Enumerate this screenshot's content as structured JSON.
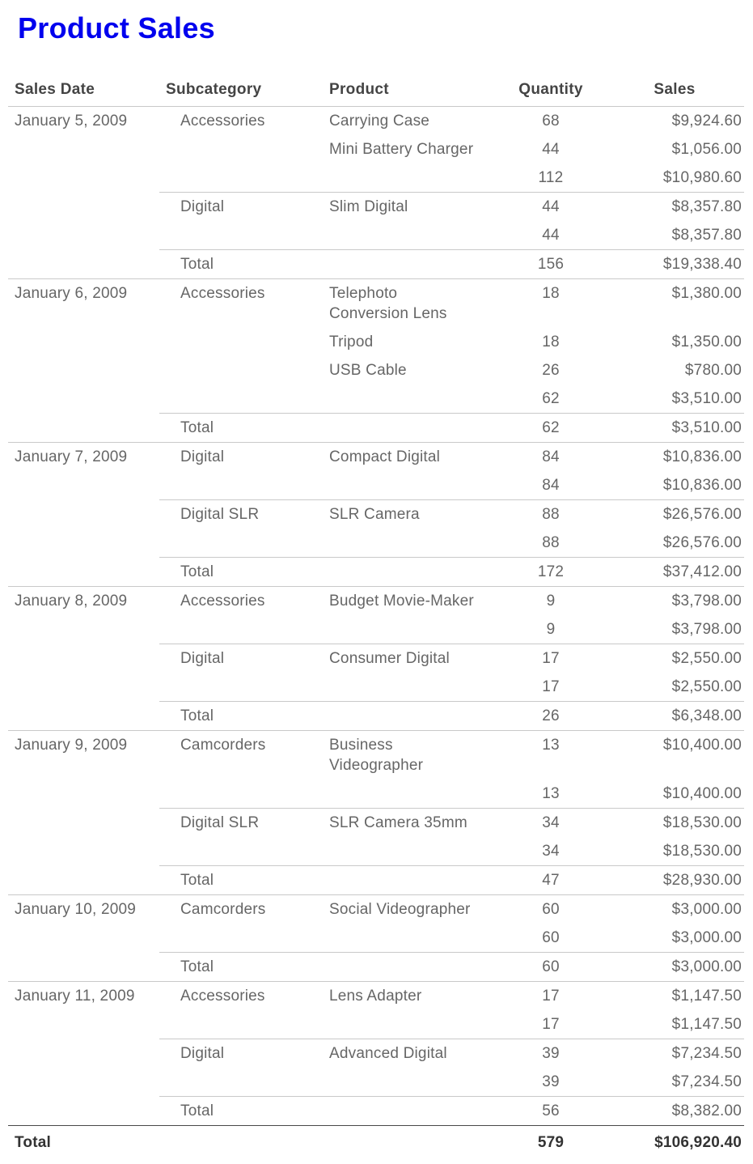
{
  "title": "Product Sales",
  "colors": {
    "title": "#0000ee",
    "header_text": "#444444",
    "body_text": "#666666",
    "separator": "#c9c9c9",
    "grand_total_border": "#484848",
    "grand_total_text": "#333333"
  },
  "chart_data": {
    "type": "table",
    "title": "Product Sales",
    "columns": [
      "Sales Date",
      "Subcategory",
      "Product",
      "Quantity",
      "Sales"
    ],
    "rows": [
      {
        "date": "January 5, 2009",
        "subcategory": "Accessories",
        "product": "Carrying Case",
        "quantity": 68,
        "sales": "$9,924.60",
        "sep": "none"
      },
      {
        "date": "",
        "subcategory": "",
        "product": "Mini Battery Charger",
        "quantity": 44,
        "sales": "$1,056.00",
        "sep": "none"
      },
      {
        "date": "",
        "subcategory": "",
        "product": "",
        "quantity": 112,
        "sales": "$10,980.60",
        "sep": "none"
      },
      {
        "date": "",
        "subcategory": "Digital",
        "product": "Slim Digital",
        "quantity": 44,
        "sales": "$8,357.80",
        "sep": "sub"
      },
      {
        "date": "",
        "subcategory": "",
        "product": "",
        "quantity": 44,
        "sales": "$8,357.80",
        "sep": "none"
      },
      {
        "date": "",
        "subcategory": "Total",
        "product": "",
        "quantity": 156,
        "sales": "$19,338.40",
        "sep": "sub"
      },
      {
        "date": "January 6, 2009",
        "subcategory": "Accessories",
        "product": "Telephoto\nConversion Lens",
        "quantity": 18,
        "sales": "$1,380.00",
        "sep": "date"
      },
      {
        "date": "",
        "subcategory": "",
        "product": "Tripod",
        "quantity": 18,
        "sales": "$1,350.00",
        "sep": "none"
      },
      {
        "date": "",
        "subcategory": "",
        "product": "USB Cable",
        "quantity": 26,
        "sales": "$780.00",
        "sep": "none"
      },
      {
        "date": "",
        "subcategory": "",
        "product": "",
        "quantity": 62,
        "sales": "$3,510.00",
        "sep": "none"
      },
      {
        "date": "",
        "subcategory": "Total",
        "product": "",
        "quantity": 62,
        "sales": "$3,510.00",
        "sep": "sub"
      },
      {
        "date": "January 7, 2009",
        "subcategory": "Digital",
        "product": "Compact Digital",
        "quantity": 84,
        "sales": "$10,836.00",
        "sep": "date"
      },
      {
        "date": "",
        "subcategory": "",
        "product": "",
        "quantity": 84,
        "sales": "$10,836.00",
        "sep": "none"
      },
      {
        "date": "",
        "subcategory": "Digital SLR",
        "product": "SLR Camera",
        "quantity": 88,
        "sales": "$26,576.00",
        "sep": "sub"
      },
      {
        "date": "",
        "subcategory": "",
        "product": "",
        "quantity": 88,
        "sales": "$26,576.00",
        "sep": "none"
      },
      {
        "date": "",
        "subcategory": "Total",
        "product": "",
        "quantity": 172,
        "sales": "$37,412.00",
        "sep": "sub"
      },
      {
        "date": "January 8, 2009",
        "subcategory": "Accessories",
        "product": "Budget Movie-Maker",
        "quantity": 9,
        "sales": "$3,798.00",
        "sep": "date"
      },
      {
        "date": "",
        "subcategory": "",
        "product": "",
        "quantity": 9,
        "sales": "$3,798.00",
        "sep": "none"
      },
      {
        "date": "",
        "subcategory": "Digital",
        "product": "Consumer Digital",
        "quantity": 17,
        "sales": "$2,550.00",
        "sep": "sub"
      },
      {
        "date": "",
        "subcategory": "",
        "product": "",
        "quantity": 17,
        "sales": "$2,550.00",
        "sep": "none"
      },
      {
        "date": "",
        "subcategory": "Total",
        "product": "",
        "quantity": 26,
        "sales": "$6,348.00",
        "sep": "sub"
      },
      {
        "date": "January 9, 2009",
        "subcategory": "Camcorders",
        "product": "Business\nVideographer",
        "quantity": 13,
        "sales": "$10,400.00",
        "sep": "date"
      },
      {
        "date": "",
        "subcategory": "",
        "product": "",
        "quantity": 13,
        "sales": "$10,400.00",
        "sep": "none"
      },
      {
        "date": "",
        "subcategory": "Digital SLR",
        "product": "SLR Camera 35mm",
        "quantity": 34,
        "sales": "$18,530.00",
        "sep": "sub"
      },
      {
        "date": "",
        "subcategory": "",
        "product": "",
        "quantity": 34,
        "sales": "$18,530.00",
        "sep": "none"
      },
      {
        "date": "",
        "subcategory": "Total",
        "product": "",
        "quantity": 47,
        "sales": "$28,930.00",
        "sep": "sub"
      },
      {
        "date": "January 10, 2009",
        "subcategory": "Camcorders",
        "product": "Social Videographer",
        "quantity": 60,
        "sales": "$3,000.00",
        "sep": "date"
      },
      {
        "date": "",
        "subcategory": "",
        "product": "",
        "quantity": 60,
        "sales": "$3,000.00",
        "sep": "none"
      },
      {
        "date": "",
        "subcategory": "Total",
        "product": "",
        "quantity": 60,
        "sales": "$3,000.00",
        "sep": "sub"
      },
      {
        "date": "January 11, 2009",
        "subcategory": "Accessories",
        "product": "Lens Adapter",
        "quantity": 17,
        "sales": "$1,147.50",
        "sep": "date"
      },
      {
        "date": "",
        "subcategory": "",
        "product": "",
        "quantity": 17,
        "sales": "$1,147.50",
        "sep": "none"
      },
      {
        "date": "",
        "subcategory": "Digital",
        "product": "Advanced Digital",
        "quantity": 39,
        "sales": "$7,234.50",
        "sep": "sub"
      },
      {
        "date": "",
        "subcategory": "",
        "product": "",
        "quantity": 39,
        "sales": "$7,234.50",
        "sep": "none"
      },
      {
        "date": "",
        "subcategory": "Total",
        "product": "",
        "quantity": 56,
        "sales": "$8,382.00",
        "sep": "sub"
      }
    ],
    "grand_total": {
      "label": "Total",
      "quantity": 579,
      "sales": "$106,920.40"
    }
  }
}
